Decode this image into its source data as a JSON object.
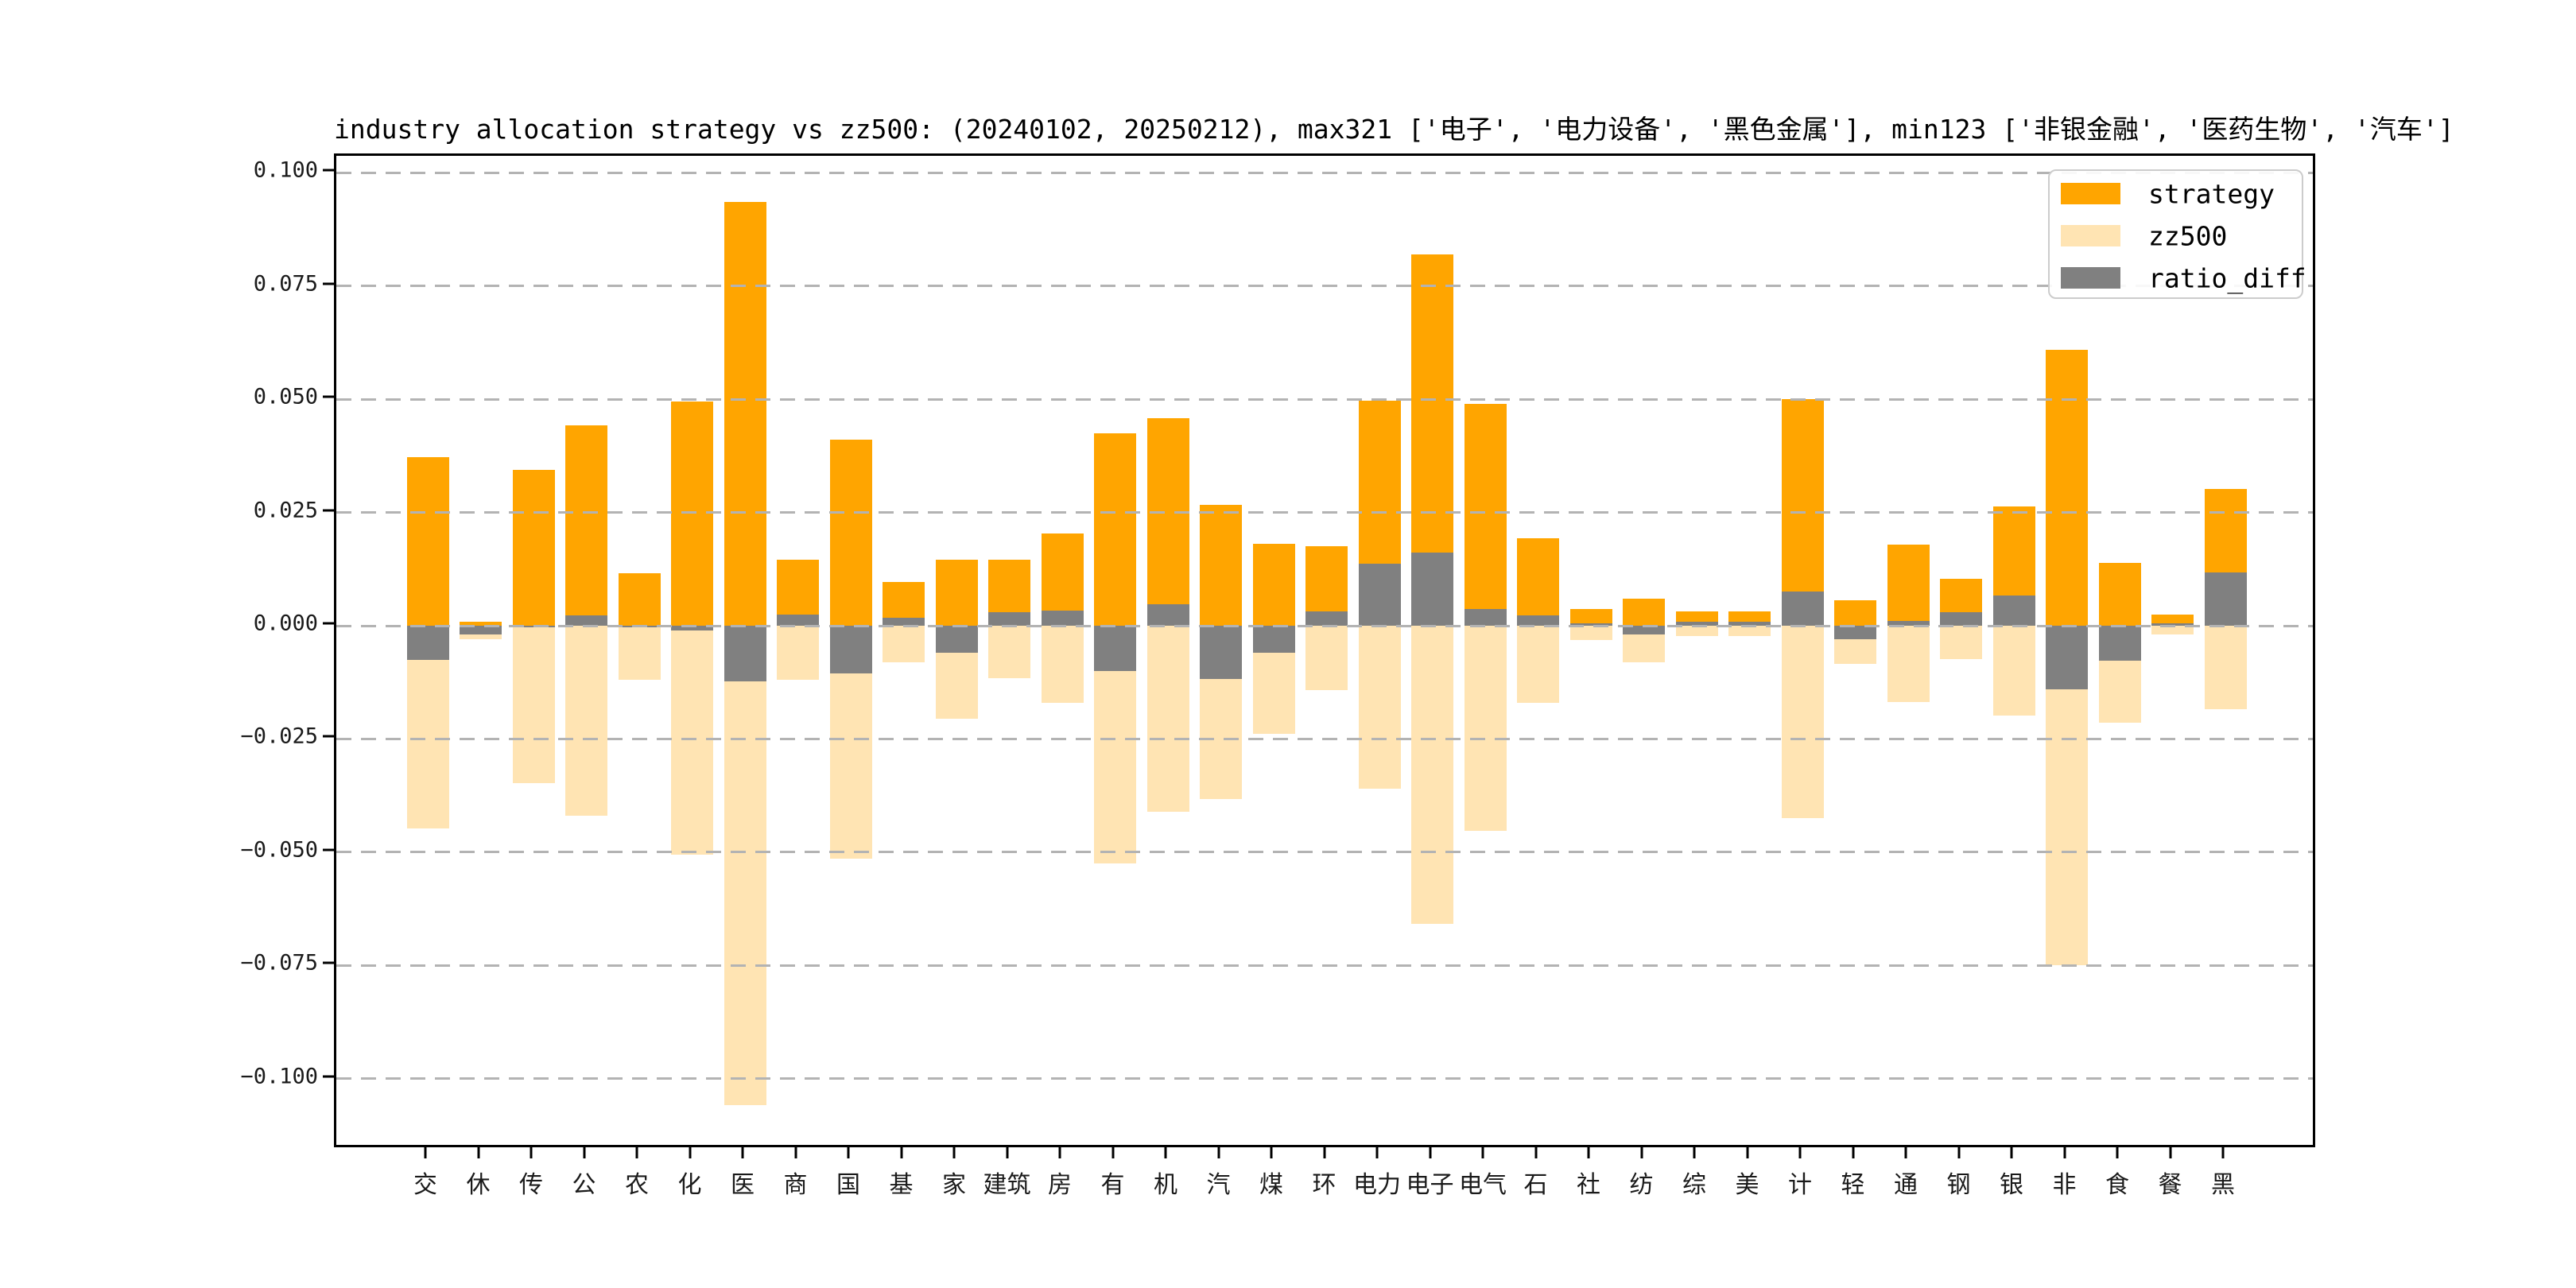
{
  "chart_data": {
    "type": "bar",
    "title": "industry allocation strategy vs zz500: (20240102, 20250212), max321 ['电子', '电力设备', '黑色金属'], min123 ['非银金融', '医药生物', '汽车']",
    "categories": [
      "交",
      "休",
      "传",
      "公",
      "农",
      "化",
      "医",
      "商",
      "国",
      "基",
      "家",
      "建筑",
      "房",
      "有",
      "机",
      "汽",
      "煤",
      "环",
      "电力",
      "电子",
      "电气",
      "石",
      "社",
      "纺",
      "综",
      "美",
      "计",
      "轻",
      "通",
      "钢",
      "银",
      "非",
      "食",
      "餐",
      "黑"
    ],
    "series": [
      {
        "name": "strategy",
        "color": "#FFA500",
        "values": [
          0.0372,
          0.0009,
          0.0344,
          0.0442,
          0.0115,
          0.0495,
          0.0935,
          0.0145,
          0.041,
          0.0097,
          0.0145,
          0.0145,
          0.0203,
          0.0425,
          0.0458,
          0.0266,
          0.018,
          0.0175,
          0.0497,
          0.082,
          0.049,
          0.0193,
          0.0037,
          0.006,
          0.0031,
          0.0031,
          0.05,
          0.0056,
          0.0179,
          0.0104,
          0.0264,
          0.061,
          0.0138,
          0.0025,
          0.0302
        ]
      },
      {
        "name": "zz500",
        "color": "#FFE4B3",
        "values": [
          -0.0447,
          -0.0029,
          -0.0347,
          -0.042,
          -0.0119,
          -0.0505,
          -0.1058,
          -0.012,
          -0.0515,
          -0.008,
          -0.0205,
          -0.0115,
          -0.017,
          -0.0525,
          -0.041,
          -0.0383,
          -0.0239,
          -0.0143,
          -0.036,
          -0.0659,
          -0.0453,
          -0.0171,
          -0.0031,
          -0.008,
          -0.0022,
          -0.0022,
          -0.0425,
          -0.0085,
          -0.0168,
          -0.0074,
          -0.0198,
          -0.075,
          -0.0215,
          -0.002,
          -0.0185
        ]
      },
      {
        "name": "ratio_diff",
        "color": "#808080",
        "values": [
          -0.0075,
          -0.002,
          -0.0003,
          0.0022,
          -0.0004,
          -0.001,
          -0.0123,
          0.0025,
          -0.0105,
          0.0017,
          -0.006,
          0.003,
          0.0033,
          -0.01,
          0.0048,
          -0.0117,
          -0.0059,
          0.0032,
          0.0137,
          0.0161,
          0.0037,
          0.0022,
          0.0006,
          -0.002,
          0.0009,
          0.0009,
          0.0075,
          -0.0029,
          0.0011,
          0.003,
          0.0066,
          -0.014,
          -0.0077,
          0.0005,
          0.0117
        ]
      }
    ],
    "legend": [
      {
        "label": "strategy",
        "color": "#FFA500"
      },
      {
        "label": "zz500",
        "color": "#FFE4B3"
      },
      {
        "label": "ratio_diff",
        "color": "#808080"
      }
    ],
    "legend_position": "upper right",
    "y_ticks": [
      {
        "value": 0.1,
        "label": "0.100"
      },
      {
        "value": 0.075,
        "label": "0.075"
      },
      {
        "value": 0.05,
        "label": "0.050"
      },
      {
        "value": 0.025,
        "label": "0.025"
      },
      {
        "value": 0.0,
        "label": "0.000"
      },
      {
        "value": -0.025,
        "label": "−0.025"
      },
      {
        "value": -0.05,
        "label": "−0.050"
      },
      {
        "value": -0.075,
        "label": "−0.075"
      },
      {
        "value": -0.1,
        "label": "−0.100"
      }
    ],
    "ylim": [
      -0.1157,
      0.1035
    ],
    "xlabel": "",
    "ylabel": "",
    "grid": "horizontal dashed, drawn above bars",
    "colors": {
      "grid": "#b3b3b3",
      "spine": "#000000",
      "background": "#ffffff",
      "legend_border": "#cccccc"
    }
  }
}
